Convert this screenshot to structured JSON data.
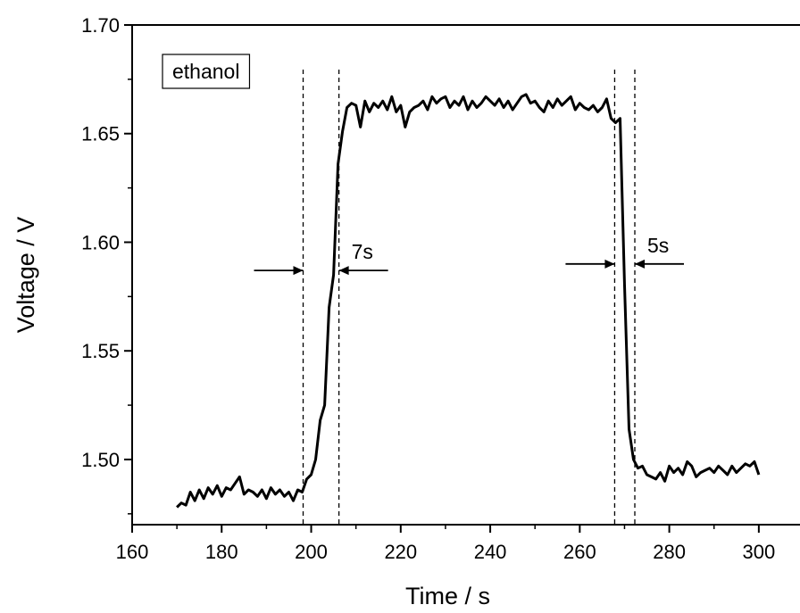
{
  "chart_data": {
    "type": "line",
    "title": "",
    "xlabel": "Time / s",
    "ylabel": "Voltage / V",
    "xlim": [
      160,
      310
    ],
    "ylim": [
      1.47,
      1.7
    ],
    "xticks": [
      160,
      180,
      200,
      220,
      240,
      260,
      280,
      300
    ],
    "xtick_labels": [
      "160",
      "180",
      "200",
      "220",
      "240",
      "260",
      "280",
      "300"
    ],
    "yticks": [
      1.5,
      1.55,
      1.6,
      1.65,
      1.7
    ],
    "ytick_labels": [
      "1.50",
      "1.55",
      "1.60",
      "1.65",
      "1.70"
    ],
    "grid": false,
    "legend": {
      "label": "ethanol",
      "placement": "top-left"
    },
    "series": [
      {
        "x": [
          170,
          171,
          172,
          173,
          174,
          175,
          176,
          177,
          178,
          179,
          180,
          181,
          182,
          183,
          184,
          185,
          186,
          187,
          188,
          189,
          190,
          191,
          192,
          193,
          194,
          195,
          196,
          197,
          198,
          199,
          200,
          201,
          202,
          203,
          204,
          205,
          206,
          207,
          208,
          209,
          210,
          211,
          212,
          213,
          214,
          215,
          216,
          217,
          218,
          219,
          220,
          221,
          222,
          223,
          224,
          225,
          226,
          227,
          228,
          229,
          230,
          231,
          232,
          233,
          234,
          235,
          236,
          237,
          238,
          239,
          240,
          241,
          242,
          243,
          244,
          245,
          246,
          247,
          248,
          249,
          250,
          251,
          252,
          253,
          254,
          255,
          256,
          257,
          258,
          259,
          260,
          261,
          262,
          263,
          264,
          265,
          266,
          267,
          268,
          269,
          270,
          271,
          272,
          273,
          274,
          275,
          276,
          277,
          278,
          279,
          280,
          281,
          282,
          283,
          284,
          285,
          286,
          287,
          288,
          289,
          290,
          291,
          292,
          293,
          294,
          295,
          296,
          297,
          298,
          299,
          300
        ],
        "y": [
          1.478,
          1.48,
          1.479,
          1.485,
          1.481,
          1.486,
          1.482,
          1.487,
          1.484,
          1.488,
          1.483,
          1.487,
          1.486,
          1.489,
          1.492,
          1.484,
          1.486,
          1.485,
          1.483,
          1.486,
          1.482,
          1.487,
          1.484,
          1.486,
          1.483,
          1.485,
          1.481,
          1.486,
          1.485,
          1.491,
          1.493,
          1.5,
          1.518,
          1.525,
          1.57,
          1.585,
          1.636,
          1.651,
          1.662,
          1.664,
          1.663,
          1.653,
          1.665,
          1.66,
          1.664,
          1.662,
          1.665,
          1.661,
          1.667,
          1.66,
          1.663,
          1.653,
          1.66,
          1.662,
          1.663,
          1.665,
          1.661,
          1.667,
          1.664,
          1.666,
          1.667,
          1.662,
          1.665,
          1.663,
          1.667,
          1.661,
          1.665,
          1.662,
          1.664,
          1.667,
          1.665,
          1.663,
          1.666,
          1.662,
          1.665,
          1.661,
          1.664,
          1.667,
          1.668,
          1.664,
          1.665,
          1.662,
          1.66,
          1.665,
          1.662,
          1.666,
          1.663,
          1.665,
          1.667,
          1.661,
          1.664,
          1.662,
          1.661,
          1.663,
          1.66,
          1.662,
          1.666,
          1.657,
          1.655,
          1.657,
          1.58,
          1.514,
          1.5,
          1.496,
          1.497,
          1.493,
          1.492,
          1.491,
          1.494,
          1.49,
          1.497,
          1.494,
          1.496,
          1.493,
          1.499,
          1.497,
          1.492,
          1.494,
          1.495,
          1.496,
          1.494,
          1.497,
          1.495,
          1.493,
          1.497,
          1.494,
          1.496,
          1.498,
          1.497,
          1.499,
          1.493
        ]
      }
    ],
    "annotations": [
      {
        "text": "7s",
        "start_x": 198.2,
        "end_x": 206.2,
        "arrow_y": 1.587
      },
      {
        "text": "5s",
        "start_x": 267.8,
        "end_x": 272.3,
        "arrow_y": 1.59
      }
    ]
  }
}
